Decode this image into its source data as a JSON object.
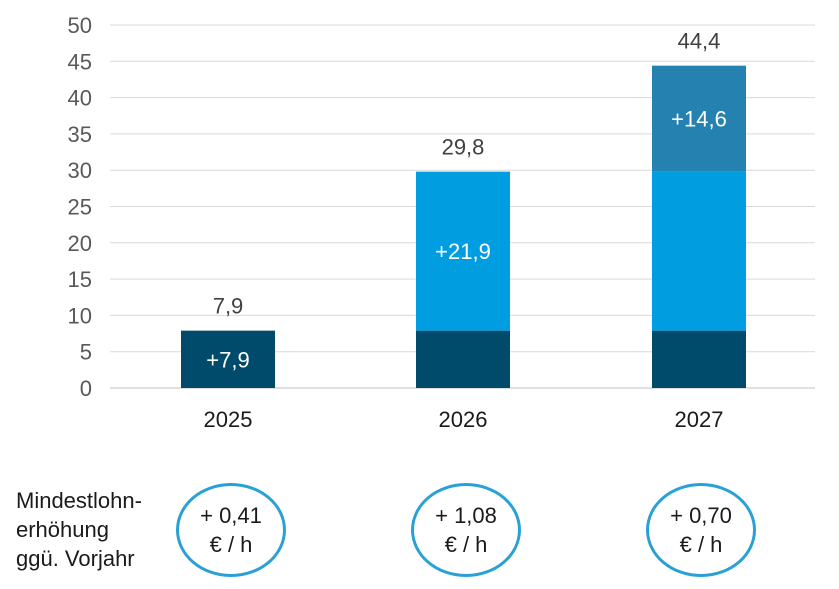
{
  "chart_data": {
    "type": "bar",
    "stacked": true,
    "categories": [
      "2025",
      "2026",
      "2027"
    ],
    "ylim": [
      0,
      50
    ],
    "yticks": [
      0,
      5,
      10,
      15,
      20,
      25,
      30,
      35,
      40,
      45,
      50
    ],
    "grid": true,
    "series": [
      {
        "values": [
          7.9,
          7.9,
          7.9
        ],
        "color": "#004b6b"
      },
      {
        "values": [
          0,
          21.9,
          21.9
        ],
        "color": "#009ee0"
      },
      {
        "values": [
          0,
          0,
          14.6
        ],
        "color": "#2582b0"
      }
    ],
    "segment_labels": [
      {
        "category": 0,
        "series": 0,
        "text": "+7,9"
      },
      {
        "category": 1,
        "series": 1,
        "text": "+21,9"
      },
      {
        "category": 2,
        "series": 2,
        "text": "+14,6"
      }
    ],
    "totals": [
      "7,9",
      "29,8",
      "44,4"
    ]
  },
  "minimum_wage": {
    "label_lines": [
      "Mindestlohn-",
      "erhöhung",
      "ggü. Vorjahr"
    ],
    "increases": [
      {
        "line1": "+ 0,41",
        "line2": "€ / h"
      },
      {
        "line1": "+ 1,08",
        "line2": "€ / h"
      },
      {
        "line1": "+ 0,70",
        "line2": "€ / h"
      }
    ]
  }
}
